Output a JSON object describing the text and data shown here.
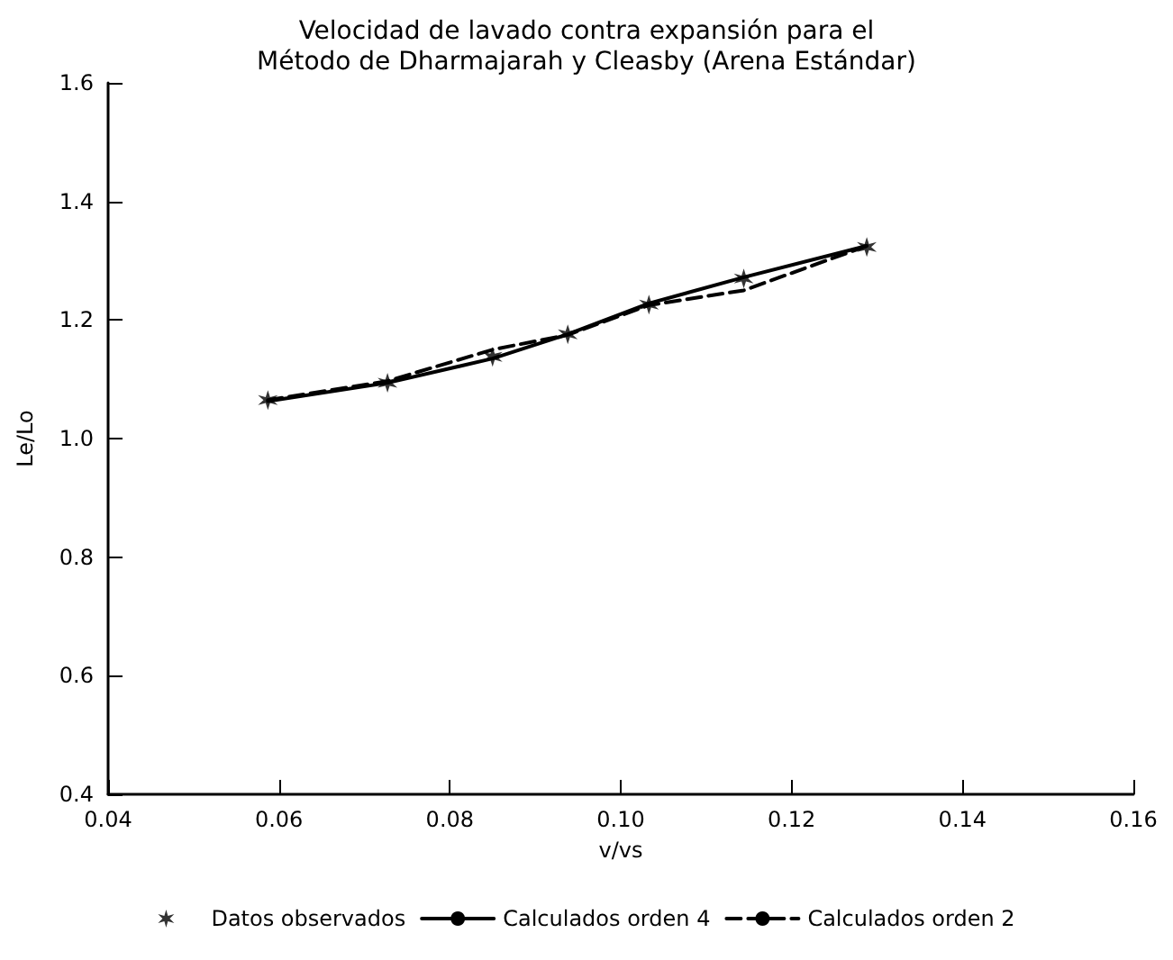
{
  "chart_data": {
    "type": "line",
    "title": "Velocidad de lavado contra expansión para el\nMétodo de Dharmajarah y Cleasby (Arena Estándar)",
    "xlabel": "v/vs",
    "ylabel": "Le/Lo",
    "x": [
      0.0587,
      0.0727,
      0.085,
      0.0938,
      0.1033,
      0.1144,
      0.1288
    ],
    "series": [
      {
        "name": "Datos observados",
        "type": "scatter",
        "marker": "cross",
        "color": "#000000",
        "values": [
          1.065,
          1.094,
          1.138,
          1.176,
          1.226,
          1.27,
          1.323
        ]
      },
      {
        "name": "Calculados orden 4",
        "line_style": "solid",
        "marker": "none",
        "color": "#000000",
        "values": [
          1.063,
          1.094,
          1.135,
          1.176,
          1.228,
          1.272,
          1.325
        ]
      },
      {
        "name": "Calculados orden 2",
        "line_style": "dashed",
        "marker": "none",
        "color": "#000000",
        "values": [
          1.065,
          1.097,
          1.15,
          1.175,
          1.225,
          1.25,
          1.325
        ]
      }
    ],
    "xlim": [
      0.04,
      0.16
    ],
    "xticks": [
      0.04,
      0.06,
      0.08,
      {
        "value": 0.1,
        "label": "0.10"
      },
      0.12,
      0.14,
      0.16
    ],
    "ylim": [
      0.4,
      1.6
    ],
    "yticks": [
      0.4,
      0.6,
      0.8,
      {
        "value": 1,
        "label": "1.0"
      },
      1.2,
      1.4,
      1.6
    ],
    "grid": false,
    "legend": "bottom"
  }
}
